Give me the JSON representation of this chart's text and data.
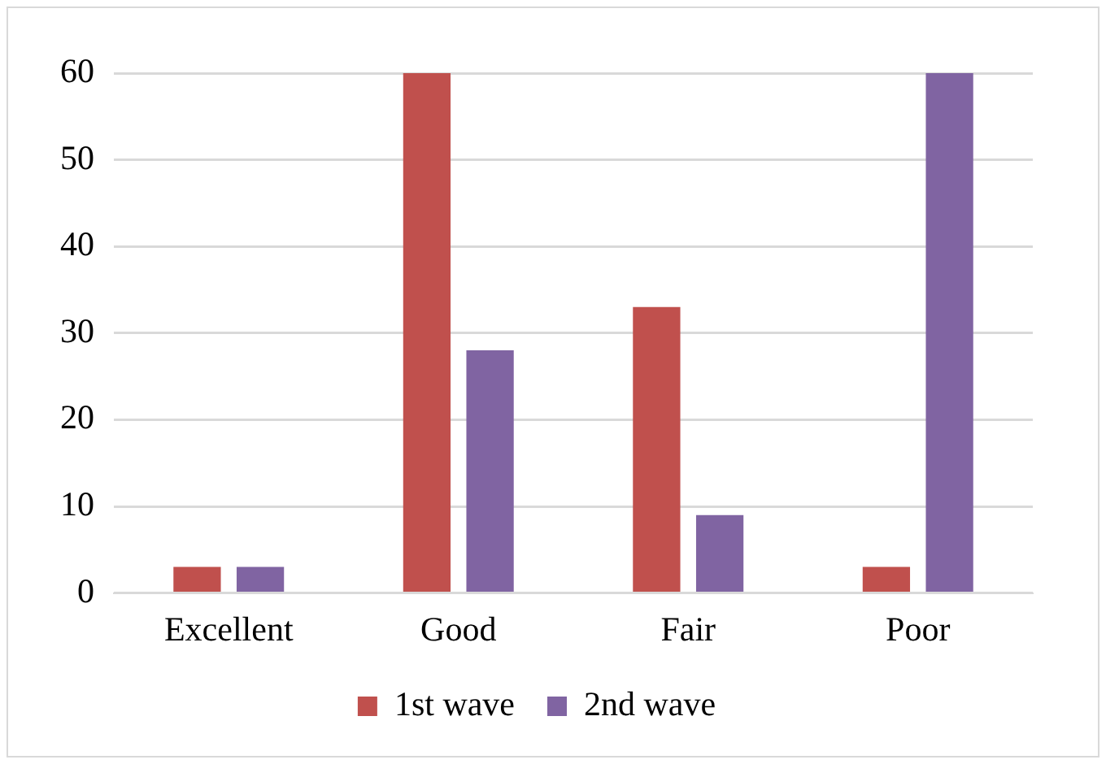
{
  "chart_data": {
    "type": "bar",
    "categories": [
      "Excellent",
      "Good",
      "Fair",
      "Poor"
    ],
    "series": [
      {
        "name": "1st wave",
        "color": "#c0504d",
        "values": [
          3,
          60,
          33,
          3
        ]
      },
      {
        "name": "2nd wave",
        "color": "#8064a2",
        "values": [
          3,
          28,
          9,
          60
        ]
      }
    ],
    "ylim": [
      0,
      60
    ],
    "yticks": [
      0,
      10,
      20,
      30,
      40,
      50,
      60
    ],
    "grid": "y",
    "legend": "bottom"
  }
}
